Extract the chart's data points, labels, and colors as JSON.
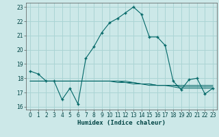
{
  "title": "",
  "xlabel": "Humidex (Indice chaleur)",
  "ylabel": "",
  "bg_color": "#cce8e8",
  "grid_color": "#aad4d4",
  "line_color": "#006666",
  "xlim": [
    -0.5,
    23.5
  ],
  "ylim": [
    15.8,
    23.3
  ],
  "xticks": [
    0,
    1,
    2,
    3,
    4,
    5,
    6,
    7,
    8,
    9,
    10,
    11,
    12,
    13,
    14,
    15,
    16,
    17,
    18,
    19,
    20,
    21,
    22,
    23
  ],
  "yticks": [
    16,
    17,
    18,
    19,
    20,
    21,
    22,
    23
  ],
  "main_series": [
    18.5,
    18.3,
    17.8,
    17.8,
    16.5,
    17.3,
    16.2,
    19.4,
    20.2,
    21.2,
    21.9,
    22.2,
    22.6,
    23.0,
    22.5,
    20.9,
    20.9,
    20.3,
    17.8,
    17.2,
    17.9,
    18.0,
    16.9,
    17.3
  ],
  "flat_series_1": [
    17.8,
    17.8,
    17.8,
    17.8,
    17.8,
    17.8,
    17.8,
    17.8,
    17.8,
    17.8,
    17.8,
    17.8,
    17.8,
    17.7,
    17.6,
    17.6,
    17.5,
    17.5,
    17.5,
    17.5,
    17.5,
    17.5,
    17.5,
    17.5
  ],
  "flat_series_2": [
    17.8,
    17.8,
    17.8,
    17.8,
    17.8,
    17.8,
    17.8,
    17.8,
    17.8,
    17.8,
    17.8,
    17.8,
    17.7,
    17.7,
    17.6,
    17.6,
    17.5,
    17.5,
    17.5,
    17.4,
    17.4,
    17.4,
    17.4,
    17.4
  ],
  "flat_series_3": [
    17.8,
    17.8,
    17.8,
    17.8,
    17.8,
    17.8,
    17.8,
    17.8,
    17.8,
    17.8,
    17.8,
    17.7,
    17.7,
    17.6,
    17.6,
    17.5,
    17.5,
    17.5,
    17.4,
    17.3,
    17.3,
    17.3,
    17.3,
    17.3
  ],
  "xlabel_fontsize": 6.5,
  "tick_fontsize": 5.5
}
